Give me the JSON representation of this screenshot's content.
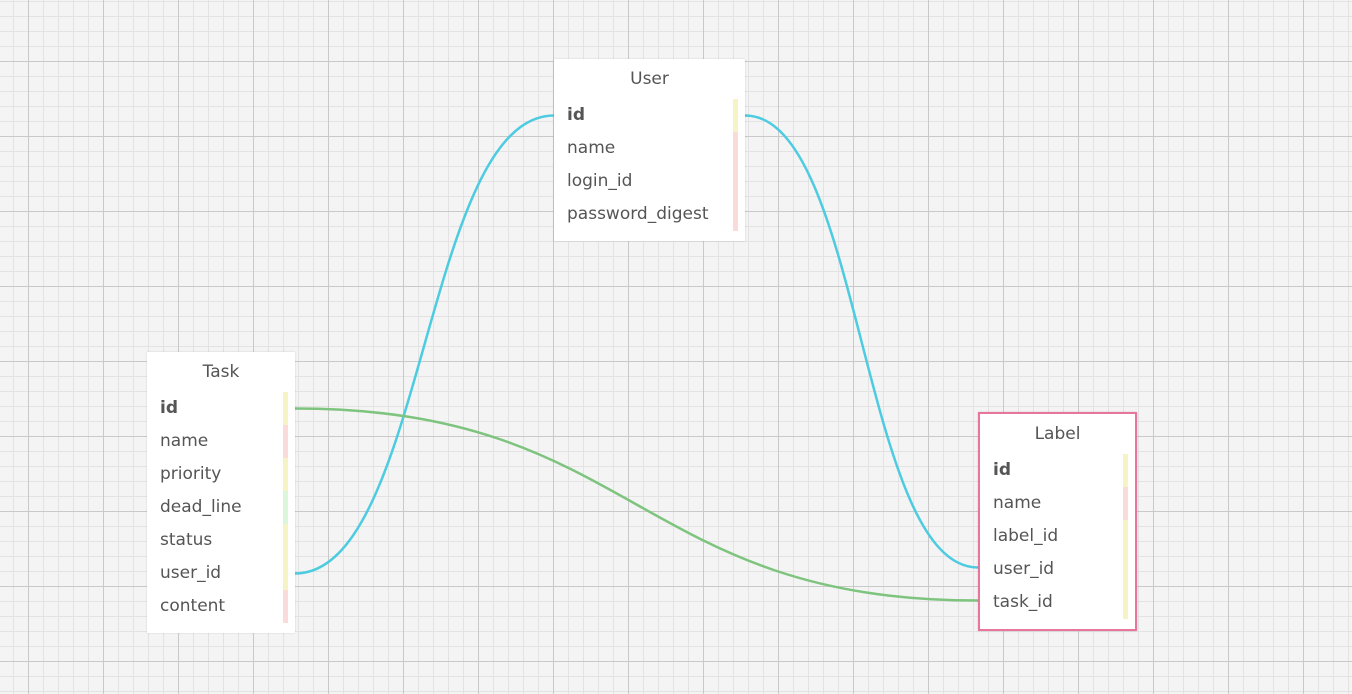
{
  "entities": {
    "user": {
      "title": "User",
      "fields": [
        {
          "name": "id",
          "primary": true,
          "type_color": "#f6f3c4"
        },
        {
          "name": "name",
          "primary": false,
          "type_color": "#fbdada"
        },
        {
          "name": "login_id",
          "primary": false,
          "type_color": "#fbdada"
        },
        {
          "name": "password_digest",
          "primary": false,
          "type_color": "#fbdada"
        }
      ]
    },
    "task": {
      "title": "Task",
      "fields": [
        {
          "name": "id",
          "primary": true,
          "type_color": "#f6f3c4"
        },
        {
          "name": "name",
          "primary": false,
          "type_color": "#fbdada"
        },
        {
          "name": "priority",
          "primary": false,
          "type_color": "#f6f3c4"
        },
        {
          "name": "dead_line",
          "primary": false,
          "type_color": "#daf7dc"
        },
        {
          "name": "status",
          "primary": false,
          "type_color": "#f6f3c4"
        },
        {
          "name": "user_id",
          "primary": false,
          "type_color": "#f6f3c4"
        },
        {
          "name": "content",
          "primary": false,
          "type_color": "#fbdada"
        }
      ]
    },
    "label": {
      "title": "Label",
      "selected": true,
      "fields": [
        {
          "name": "id",
          "primary": true,
          "type_color": "#f6f3c4"
        },
        {
          "name": "name",
          "primary": false,
          "type_color": "#fbdada"
        },
        {
          "name": "label_id",
          "primary": false,
          "type_color": "#f6f3c4"
        },
        {
          "name": "user_id",
          "primary": false,
          "type_color": "#f6f3c4"
        },
        {
          "name": "task_id",
          "primary": false,
          "type_color": "#f6f3c4"
        }
      ]
    }
  },
  "relations": [
    {
      "from": "user.id",
      "to": "task.user_id",
      "color": "#4dcbe0"
    },
    {
      "from": "user.id",
      "to": "label.user_id",
      "color": "#4dcbe0"
    },
    {
      "from": "task.id",
      "to": "label.task_id",
      "color": "#7ec47e"
    }
  ],
  "colors": {
    "selected_border": "#e8759c",
    "field_text": "#555555"
  }
}
